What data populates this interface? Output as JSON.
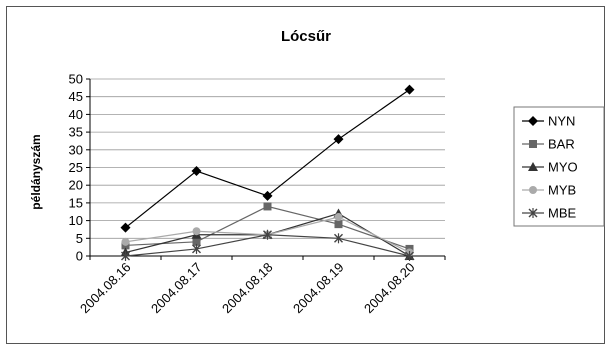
{
  "chart_data": {
    "type": "line",
    "title": "Lócsűr",
    "xlabel": "",
    "ylabel": "példányszám",
    "categories": [
      "2004.08.16",
      "2004.08.17",
      "2004.08.18",
      "2004.08.19",
      "2004.08.20"
    ],
    "ylim": [
      0,
      50
    ],
    "yticks": [
      0,
      5,
      10,
      15,
      20,
      25,
      30,
      35,
      40,
      45,
      50
    ],
    "grid": true,
    "legend_position": "right",
    "series": [
      {
        "name": "NYN",
        "values": [
          8,
          24,
          17,
          33,
          47
        ],
        "color": "#000000",
        "marker": "diamond"
      },
      {
        "name": "BAR",
        "values": [
          3,
          4,
          14,
          9,
          2
        ],
        "color": "#666666",
        "marker": "square"
      },
      {
        "name": "MYO",
        "values": [
          1,
          6,
          6,
          12,
          0
        ],
        "color": "#333333",
        "marker": "triangle"
      },
      {
        "name": "MYB",
        "values": [
          4,
          7,
          6,
          11,
          1
        ],
        "color": "#aaaaaa",
        "marker": "circle"
      },
      {
        "name": "MBE",
        "values": [
          0,
          2,
          6,
          5,
          0
        ],
        "color": "#444444",
        "marker": "star"
      }
    ]
  }
}
